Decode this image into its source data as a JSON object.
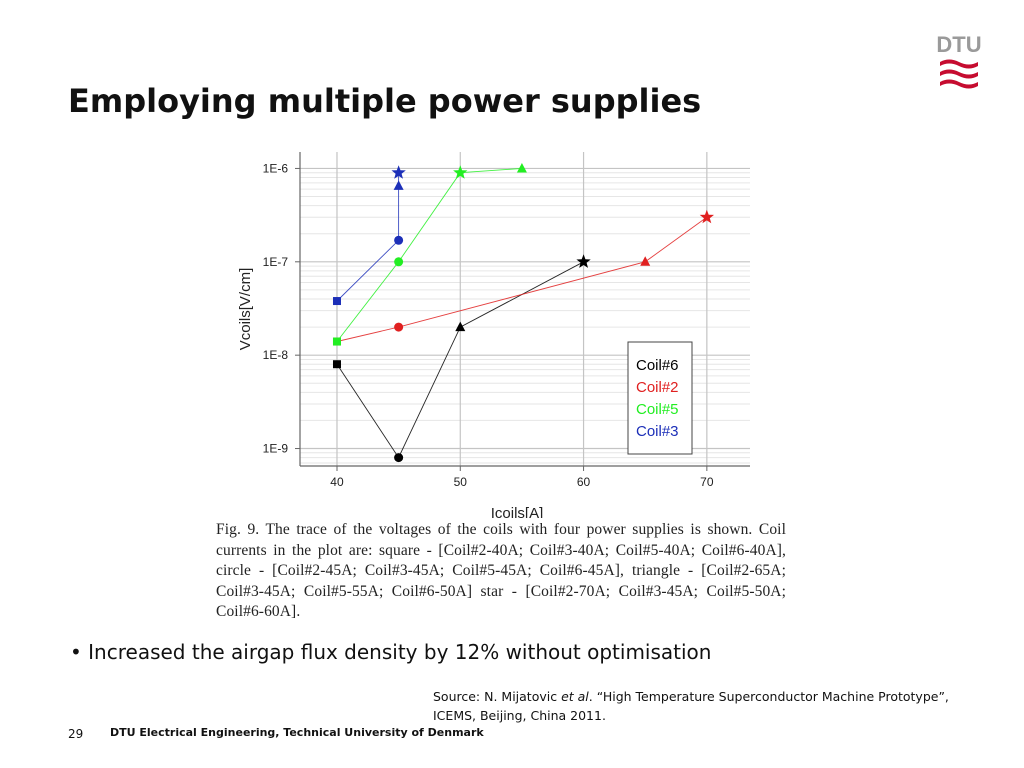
{
  "slide": {
    "title": "Employing multiple power supplies",
    "caption": "Fig. 9. The trace of the voltages of the coils with four power supplies is shown. Coil currents  in the plot are: square - [Coil#2-40A; Coil#3-40A; Coil#5-40A; Coil#6-40A], circle - [Coil#2-45A; Coil#3-45A; Coil#5-45A; Coil#6-45A], triangle - [Coil#2-65A; Coil#3-45A; Coil#5-55A; Coil#6-50A] star - [Coil#2-70A; Coil#3-45A; Coil#5-50A; Coil#6-60A].",
    "bullet_marker": "•",
    "bullet": "Increased the airgap flux density by 12% without optimisation",
    "source_prefix": "Source: N. Mijatovic ",
    "source_italic": "et al",
    "source_suffix": ". “High Temperature Superconductor Machine Prototype”, ICEMS, Beijing, China 2011.",
    "page_number": "29",
    "footer": "DTU Electrical Engineering, Technical University of Denmark",
    "logo": {
      "text": "DTU",
      "color": "#c60c30"
    }
  },
  "chart_data": {
    "type": "line",
    "title": "",
    "xlabel": "Icoils[A]",
    "ylabel": "Vcoils[V/cm]",
    "xlim": [
      37,
      73.5
    ],
    "ylim": [
      6.5e-10,
      1.5e-06
    ],
    "yscale": "log",
    "grid": true,
    "legend_position": "inside-right",
    "x_ticks": [
      40,
      50,
      60,
      70
    ],
    "y_ticks": [
      {
        "value": 1e-09,
        "label": "1E-9"
      },
      {
        "value": 1e-08,
        "label": "1E-8"
      },
      {
        "value": 1e-07,
        "label": "1E-7"
      },
      {
        "value": 1e-06,
        "label": "1E-6"
      }
    ],
    "marker_legend": [
      "square",
      "circle",
      "triangle",
      "star"
    ],
    "series": [
      {
        "name": "Coil#6",
        "color": "#000000",
        "points": [
          {
            "x": 40,
            "y": 8e-09,
            "marker": "square"
          },
          {
            "x": 45,
            "y": 8e-10,
            "marker": "circle"
          },
          {
            "x": 50,
            "y": 2e-08,
            "marker": "triangle"
          },
          {
            "x": 60,
            "y": 1e-07,
            "marker": "star"
          }
        ]
      },
      {
        "name": "Coil#2",
        "color": "#e02020",
        "points": [
          {
            "x": 40,
            "y": 1.4e-08,
            "marker": "square"
          },
          {
            "x": 45,
            "y": 2e-08,
            "marker": "circle"
          },
          {
            "x": 65,
            "y": 1e-07,
            "marker": "triangle"
          },
          {
            "x": 70,
            "y": 3e-07,
            "marker": "star"
          }
        ]
      },
      {
        "name": "Coil#5",
        "color": "#22ee22",
        "points": [
          {
            "x": 40,
            "y": 1.4e-08,
            "marker": "square"
          },
          {
            "x": 45,
            "y": 1e-07,
            "marker": "circle"
          },
          {
            "x": 50,
            "y": 9e-07,
            "marker": "star"
          },
          {
            "x": 55,
            "y": 1e-06,
            "marker": "triangle"
          }
        ]
      },
      {
        "name": "Coil#3",
        "color": "#1c2fb8",
        "points": [
          {
            "x": 40,
            "y": 3.8e-08,
            "marker": "square"
          },
          {
            "x": 45,
            "y": 1.7e-07,
            "marker": "circle"
          },
          {
            "x": 45,
            "y": 6.5e-07,
            "marker": "triangle"
          },
          {
            "x": 45,
            "y": 9e-07,
            "marker": "star"
          }
        ]
      }
    ]
  }
}
